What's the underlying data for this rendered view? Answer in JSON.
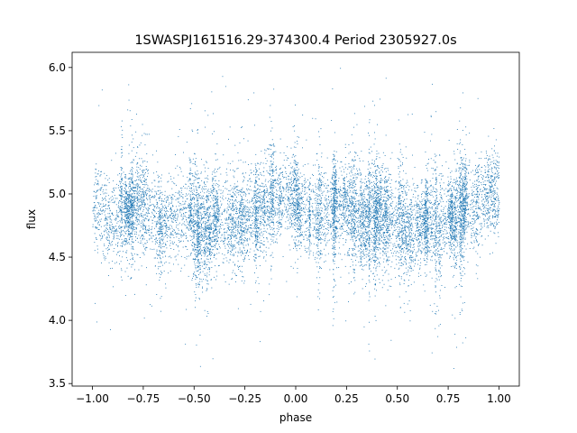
{
  "chart_data": {
    "type": "scatter",
    "title": "1SWASPJ161516.29-374300.4 Period 2305927.0s",
    "xlabel": "phase",
    "ylabel": "flux",
    "xlim": [
      -1.1,
      1.1
    ],
    "ylim": [
      3.48,
      6.12
    ],
    "xticks": [
      -1.0,
      -0.75,
      -0.5,
      -0.25,
      0.0,
      0.25,
      0.5,
      0.75,
      1.0
    ],
    "xtick_labels": [
      "−1.00",
      "−0.75",
      "−0.50",
      "−0.25",
      "0.00",
      "0.25",
      "0.50",
      "0.75",
      "1.00"
    ],
    "yticks": [
      3.5,
      4.0,
      4.5,
      5.0,
      5.5,
      6.0
    ],
    "ytick_labels": [
      "3.5",
      "4.0",
      "4.5",
      "5.0",
      "5.5",
      "6.0"
    ],
    "grid": false,
    "marker_color": "#1f77b4",
    "series": [
      {
        "x_range": [
          -1.0,
          1.0
        ],
        "approx_points": 12000,
        "mean_flux": 4.85,
        "typical_flux_range": [
          4.3,
          5.3
        ],
        "full_flux_range": [
          3.6,
          6.02
        ],
        "phase_profile": [
          [
            -1.0,
            4.95
          ],
          [
            -0.95,
            4.85
          ],
          [
            -0.9,
            4.8
          ],
          [
            -0.85,
            4.85
          ],
          [
            -0.8,
            4.88
          ],
          [
            -0.75,
            4.9
          ],
          [
            -0.7,
            4.85
          ],
          [
            -0.65,
            4.78
          ],
          [
            -0.6,
            4.82
          ],
          [
            -0.55,
            4.85
          ],
          [
            -0.5,
            4.78
          ],
          [
            -0.45,
            4.72
          ],
          [
            -0.4,
            4.76
          ],
          [
            -0.35,
            4.78
          ],
          [
            -0.3,
            4.75
          ],
          [
            -0.25,
            4.8
          ],
          [
            -0.2,
            4.85
          ],
          [
            -0.15,
            4.9
          ],
          [
            -0.1,
            4.95
          ],
          [
            -0.05,
            5.0
          ],
          [
            0.0,
            4.95
          ],
          [
            0.05,
            4.85
          ],
          [
            0.1,
            4.82
          ],
          [
            0.15,
            4.85
          ],
          [
            0.2,
            4.88
          ],
          [
            0.25,
            4.9
          ],
          [
            0.3,
            4.85
          ],
          [
            0.35,
            4.8
          ],
          [
            0.4,
            4.82
          ],
          [
            0.45,
            4.85
          ],
          [
            0.5,
            4.78
          ],
          [
            0.55,
            4.72
          ],
          [
            0.6,
            4.76
          ],
          [
            0.65,
            4.78
          ],
          [
            0.7,
            4.75
          ],
          [
            0.75,
            4.8
          ],
          [
            0.8,
            4.85
          ],
          [
            0.85,
            4.9
          ],
          [
            0.9,
            4.95
          ],
          [
            0.95,
            5.0
          ],
          [
            1.0,
            4.95
          ]
        ]
      }
    ]
  }
}
